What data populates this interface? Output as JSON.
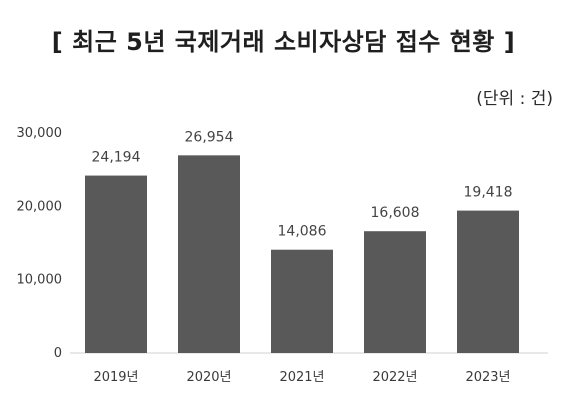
{
  "chart_data": {
    "type": "bar",
    "title": "[ 최근 5년 국제거래 소비자상담 접수 현황 ]",
    "unit_label": "(단위 : 건)",
    "categories": [
      "2019년",
      "2020년",
      "2021년",
      "2022년",
      "2023년"
    ],
    "values": [
      24194,
      26954,
      14086,
      16608,
      19418
    ],
    "value_labels": [
      "24,194",
      "26,954",
      "14,086",
      "16,608",
      "19,418"
    ],
    "y_ticks": [
      0,
      10000,
      20000,
      30000
    ],
    "y_tick_labels": [
      "0",
      "10,000",
      "20,000",
      "30,000"
    ],
    "ylim": [
      0,
      30000
    ],
    "xlabel": "",
    "ylabel": "",
    "grid": false,
    "bar_color": "#595959",
    "axis_color": "#d0d0d0"
  }
}
